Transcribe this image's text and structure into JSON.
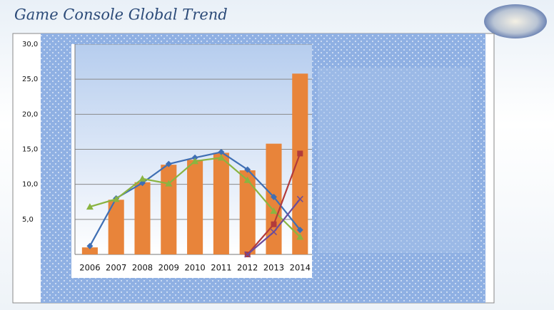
{
  "chart_data": {
    "type": "bar",
    "title": "Game Console Global Trend",
    "categories": [
      "2006",
      "2007",
      "2008",
      "2009",
      "2010",
      "2011",
      "2012",
      "2013",
      "2014"
    ],
    "values": [
      1.0,
      7.8,
      10.3,
      12.8,
      13.5,
      14.5,
      12.0,
      15.8,
      25.8
    ],
    "color": "#e8843a",
    "lines": [
      {
        "color": "#3f6fb4",
        "marker": "diamond",
        "values": [
          1.2,
          8.0,
          10.2,
          12.9,
          13.8,
          14.6,
          12.1,
          8.2,
          3.5
        ]
      },
      {
        "color": "#8ab441",
        "marker": "triangle",
        "values": [
          6.8,
          7.9,
          10.8,
          10.1,
          13.3,
          13.8,
          10.6,
          6.2,
          2.5
        ]
      },
      {
        "color": "#b23b3b",
        "marker": "square",
        "values": [
          null,
          null,
          null,
          null,
          null,
          null,
          0,
          4.3,
          14.4
        ]
      },
      {
        "color": "#6c4c9a",
        "marker": "x",
        "values": [
          null,
          null,
          null,
          null,
          null,
          null,
          0,
          3.2,
          7.9
        ]
      }
    ],
    "ylim": [
      0,
      30
    ],
    "yticks": [
      {
        "value": 5,
        "label": "5,0"
      },
      {
        "value": 10,
        "label": "10,0"
      },
      {
        "value": 15,
        "label": "15,0"
      },
      {
        "value": 20,
        "label": "20,0"
      },
      {
        "value": 25,
        "label": "25,0"
      },
      {
        "value": 30,
        "label": "30,0"
      }
    ],
    "grid": true
  }
}
